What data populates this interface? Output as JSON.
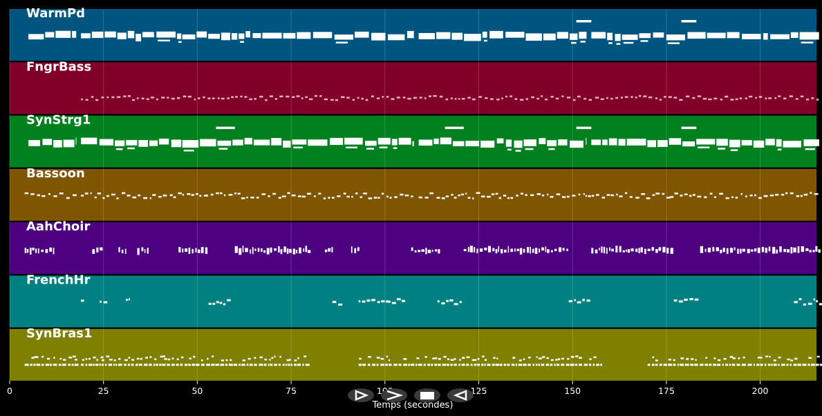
{
  "player": {
    "axis_title": "Temps (secondes)",
    "controls": [
      {
        "name": "play-button",
        "icon": "play-icon"
      },
      {
        "name": "forward-button",
        "icon": "chevron-right-icon"
      },
      {
        "name": "stop-button",
        "icon": "stop-icon"
      },
      {
        "name": "rewind-button",
        "icon": "rewind-icon"
      }
    ],
    "colors": {
      "background": "#000000",
      "note": "#ffffff",
      "grid": "#ffffff"
    }
  },
  "chart_data": {
    "type": "piano-roll",
    "xlabel": "Temps (secondes)",
    "xlim": [
      0,
      215
    ],
    "xticks": [
      0,
      25,
      50,
      75,
      100,
      125,
      150,
      175,
      200
    ],
    "grid": true,
    "tracks": [
      {
        "name": "WarmPd",
        "color": "#005580",
        "pattern": "sustain",
        "segments": [
          [
            5,
            18
          ],
          [
            19,
            46
          ],
          [
            46,
            108
          ],
          [
            109,
            154
          ],
          [
            155,
            216
          ]
        ],
        "high_notes": [
          [
            151,
            155
          ],
          [
            179,
            183
          ]
        ]
      },
      {
        "name": "FngrBass",
        "color": "#800028",
        "pattern": "bass",
        "segments": [
          [
            19,
            155
          ],
          [
            156,
            216
          ]
        ]
      },
      {
        "name": "SynStrg1",
        "color": "#00801e",
        "pattern": "sustain",
        "segments": [
          [
            5,
            18
          ],
          [
            19,
            46
          ],
          [
            46,
            108
          ],
          [
            109,
            154
          ],
          [
            155,
            216
          ]
        ],
        "high_notes": [
          [
            55,
            60
          ],
          [
            116,
            121
          ],
          [
            151,
            155
          ],
          [
            179,
            183
          ]
        ]
      },
      {
        "name": "Bassoon",
        "color": "#805500",
        "pattern": "melody",
        "segments": [
          [
            4,
            17
          ],
          [
            19,
            46
          ],
          [
            46,
            108
          ],
          [
            109,
            176
          ],
          [
            176,
            216
          ]
        ]
      },
      {
        "name": "AahChoir",
        "color": "#4d0080",
        "pattern": "choir",
        "segments": [
          [
            4,
            12
          ],
          [
            22,
            24
          ],
          [
            29,
            31
          ],
          [
            34,
            37
          ],
          [
            45,
            53
          ],
          [
            60,
            80
          ],
          [
            84,
            86
          ],
          [
            91,
            93
          ],
          [
            107,
            115
          ],
          [
            121,
            149
          ],
          [
            155,
            177
          ],
          [
            184,
            216
          ]
        ]
      },
      {
        "name": "FrenchHr",
        "color": "#008080",
        "pattern": "horn",
        "segments": [
          [
            19,
            20
          ],
          [
            24,
            26
          ],
          [
            31,
            32
          ],
          [
            53,
            59
          ],
          [
            86,
            88
          ],
          [
            93,
            101
          ],
          [
            101,
            105
          ],
          [
            114,
            120
          ],
          [
            149,
            155
          ],
          [
            177,
            183
          ],
          [
            209,
            216
          ]
        ]
      },
      {
        "name": "SynBras1",
        "color": "#808000",
        "pattern": "brass",
        "segments": [
          [
            4,
            18
          ],
          [
            19,
            41
          ],
          [
            41,
            80
          ],
          [
            93,
            158
          ],
          [
            170,
            216
          ]
        ]
      }
    ]
  }
}
